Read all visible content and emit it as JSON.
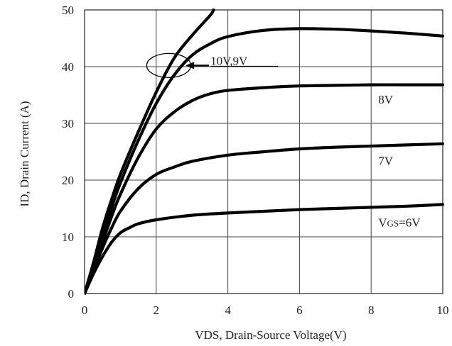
{
  "chart_data": {
    "type": "line",
    "xlabel": "VDS, Drain-Source Voltage(V)",
    "ylabel": "ID, Drain Current (A)",
    "xlim": [
      0,
      10
    ],
    "ylim": [
      0,
      50
    ],
    "xticks": [
      "0",
      "2",
      "4",
      "6",
      "8",
      "10"
    ],
    "yticks": [
      "0",
      "10",
      "20",
      "30",
      "40",
      "50"
    ],
    "grid": true,
    "series": [
      {
        "name": "Vgs=6V",
        "label_prefix": "V",
        "label_sub": "GS",
        "label_suffix": "=6V",
        "x": [
          0,
          0.25,
          0.5,
          0.75,
          1,
          1.25,
          1.5,
          2,
          3,
          4,
          5,
          6,
          7,
          8,
          9,
          10
        ],
        "y": [
          0,
          3.5,
          6.5,
          9,
          10.7,
          11.6,
          12.3,
          13,
          13.8,
          14.2,
          14.5,
          14.8,
          15,
          15.2,
          15.4,
          15.7
        ]
      },
      {
        "name": "7V",
        "x": [
          0,
          0.25,
          0.5,
          0.75,
          1,
          1.5,
          2,
          2.5,
          3,
          4,
          5,
          6,
          7,
          8,
          9,
          10
        ],
        "y": [
          0,
          4,
          8,
          11.5,
          14.5,
          18.5,
          21,
          22.3,
          23.3,
          24.4,
          25,
          25.5,
          25.8,
          26,
          26.2,
          26.4
        ]
      },
      {
        "name": "8V",
        "x": [
          0,
          0.25,
          0.5,
          0.75,
          1,
          1.5,
          2,
          2.5,
          3,
          3.5,
          4,
          5,
          6,
          7,
          8,
          9,
          10
        ],
        "y": [
          0,
          4.5,
          9,
          13.5,
          17.5,
          24,
          29,
          32,
          34,
          35.2,
          35.8,
          36.3,
          36.6,
          36.7,
          36.8,
          36.8,
          36.8
        ]
      },
      {
        "name": "9V",
        "x": [
          0,
          0.25,
          0.5,
          0.75,
          1,
          1.5,
          2,
          2.5,
          3,
          3.5,
          4,
          5,
          6,
          7,
          8,
          9,
          10
        ],
        "y": [
          0,
          5,
          10,
          15,
          19.5,
          27,
          33.5,
          38.5,
          42,
          44,
          45.3,
          46.4,
          46.7,
          46.6,
          46.3,
          45.9,
          45.4
        ]
      },
      {
        "name": "10V",
        "x": [
          0,
          0.25,
          0.5,
          0.75,
          1,
          1.5,
          2,
          2.5,
          3,
          3.5,
          3.6
        ],
        "y": [
          0,
          5.5,
          11.5,
          16.5,
          21,
          28.5,
          35.5,
          41.5,
          45.5,
          49,
          50
        ]
      }
    ],
    "annotations": {
      "circle_label": "10V,9V",
      "label_8v": "8V",
      "label_7v": "7V"
    }
  }
}
